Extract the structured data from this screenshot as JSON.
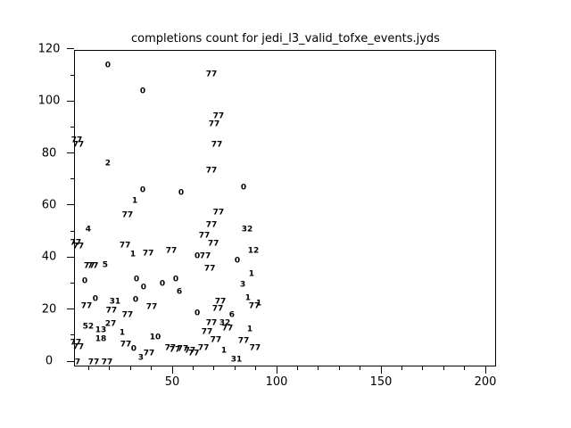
{
  "title": "completions count for jedi_l3_valid_tofxe_events.jyds",
  "chart_data": {
    "type": "scatter",
    "title": "completions count for jedi_l3_valid_tofxe_events.jyds",
    "xlabel": "",
    "ylabel": "",
    "xlim": [
      3,
      205
    ],
    "ylim": [
      -2,
      120
    ],
    "x_ticks": [
      50,
      100,
      150,
      200
    ],
    "y_ticks": [
      0,
      20,
      40,
      60,
      80,
      100,
      120
    ],
    "x_minor_step": 10,
    "y_minor_step": 10,
    "grid": "off",
    "legend": "none",
    "marker_style": "numeric-text-labels",
    "points": [
      {
        "label": "0",
        "x": 19.2,
        "y": 113.5
      },
      {
        "label": "77",
        "x": 68.8,
        "y": 110.1
      },
      {
        "label": "0",
        "x": 35.9,
        "y": 103.5
      },
      {
        "label": "77",
        "x": 72.2,
        "y": 93.9
      },
      {
        "label": "77",
        "x": 70.1,
        "y": 90.9
      },
      {
        "label": "77",
        "x": 4.3,
        "y": 84.7
      },
      {
        "label": "77",
        "x": 5.1,
        "y": 83.0
      },
      {
        "label": "77",
        "x": 71.4,
        "y": 83.0
      },
      {
        "label": "2",
        "x": 19.2,
        "y": 75.8
      },
      {
        "label": "77",
        "x": 68.8,
        "y": 73.0
      },
      {
        "label": "0",
        "x": 35.9,
        "y": 65.5
      },
      {
        "label": "0",
        "x": 54.3,
        "y": 64.5
      },
      {
        "label": "0",
        "x": 84.2,
        "y": 66.5
      },
      {
        "label": "1",
        "x": 32.1,
        "y": 61.4
      },
      {
        "label": "77",
        "x": 28.6,
        "y": 55.9
      },
      {
        "label": "77",
        "x": 72.2,
        "y": 56.9
      },
      {
        "label": "77",
        "x": 68.8,
        "y": 52.1
      },
      {
        "label": "4",
        "x": 9.8,
        "y": 50.4
      },
      {
        "label": "32",
        "x": 85.9,
        "y": 50.4
      },
      {
        "label": "77",
        "x": 65.4,
        "y": 48.0
      },
      {
        "label": "77",
        "x": 3.8,
        "y": 45.3
      },
      {
        "label": "77",
        "x": 5.1,
        "y": 43.9
      },
      {
        "label": "77",
        "x": 27.4,
        "y": 44.2
      },
      {
        "label": "77",
        "x": 69.7,
        "y": 44.9
      },
      {
        "label": "12",
        "x": 88.9,
        "y": 42.2
      },
      {
        "label": "77",
        "x": 49.6,
        "y": 42.2
      },
      {
        "label": "1",
        "x": 31.2,
        "y": 40.8
      },
      {
        "label": "77",
        "x": 38.5,
        "y": 41.1
      },
      {
        "label": "0",
        "x": 62.0,
        "y": 40.1
      },
      {
        "label": "77",
        "x": 65.8,
        "y": 40.1
      },
      {
        "label": "0",
        "x": 81.2,
        "y": 38.4
      },
      {
        "label": "77",
        "x": 10.3,
        "y": 36.3
      },
      {
        "label": "77",
        "x": 12.0,
        "y": 36.3
      },
      {
        "label": "5",
        "x": 17.9,
        "y": 36.7
      },
      {
        "label": "77",
        "x": 68.0,
        "y": 35.3
      },
      {
        "label": "1",
        "x": 88.0,
        "y": 33.3
      },
      {
        "label": "0",
        "x": 8.1,
        "y": 30.5
      },
      {
        "label": "0",
        "x": 32.9,
        "y": 31.2
      },
      {
        "label": "0",
        "x": 51.7,
        "y": 31.2
      },
      {
        "label": "0",
        "x": 36.3,
        "y": 28.1
      },
      {
        "label": "0",
        "x": 45.3,
        "y": 29.5
      },
      {
        "label": "3",
        "x": 83.8,
        "y": 29.1
      },
      {
        "label": "6",
        "x": 53.4,
        "y": 26.4
      },
      {
        "label": "0",
        "x": 13.2,
        "y": 23.7
      },
      {
        "label": "31",
        "x": 22.6,
        "y": 22.6
      },
      {
        "label": "0",
        "x": 32.5,
        "y": 23.3
      },
      {
        "label": "1",
        "x": 86.3,
        "y": 24.0
      },
      {
        "label": "77",
        "x": 73.1,
        "y": 22.6
      },
      {
        "label": "77",
        "x": 9.0,
        "y": 20.9
      },
      {
        "label": "77",
        "x": 40.2,
        "y": 20.6
      },
      {
        "label": "77",
        "x": 89.3,
        "y": 20.9
      },
      {
        "label": "1",
        "x": 91.5,
        "y": 21.9
      },
      {
        "label": "77",
        "x": 71.8,
        "y": 19.9
      },
      {
        "label": "77",
        "x": 20.9,
        "y": 19.2
      },
      {
        "label": "0",
        "x": 62.0,
        "y": 18.2
      },
      {
        "label": "6",
        "x": 78.6,
        "y": 17.5
      },
      {
        "label": "77",
        "x": 28.6,
        "y": 17.5
      },
      {
        "label": "77",
        "x": 68.8,
        "y": 14.4
      },
      {
        "label": "32",
        "x": 75.2,
        "y": 14.4
      },
      {
        "label": "27",
        "x": 20.5,
        "y": 14.1
      },
      {
        "label": "52",
        "x": 9.8,
        "y": 13.0
      },
      {
        "label": "77",
        "x": 76.5,
        "y": 12.3
      },
      {
        "label": "1",
        "x": 87.2,
        "y": 12.0
      },
      {
        "label": "13",
        "x": 15.8,
        "y": 11.7
      },
      {
        "label": "77",
        "x": 66.7,
        "y": 11.0
      },
      {
        "label": "1",
        "x": 26.1,
        "y": 10.6
      },
      {
        "label": "10",
        "x": 41.9,
        "y": 8.9
      },
      {
        "label": "18",
        "x": 15.8,
        "y": 8.2
      },
      {
        "label": "77",
        "x": 70.9,
        "y": 7.9
      },
      {
        "label": "77",
        "x": 84.2,
        "y": 7.5
      },
      {
        "label": "77",
        "x": 3.8,
        "y": 6.9
      },
      {
        "label": "77",
        "x": 5.1,
        "y": 5.1
      },
      {
        "label": "77",
        "x": 27.8,
        "y": 6.2
      },
      {
        "label": "77",
        "x": 89.7,
        "y": 4.8
      },
      {
        "label": "0",
        "x": 31.6,
        "y": 4.5
      },
      {
        "label": "77",
        "x": 38.9,
        "y": 2.7
      },
      {
        "label": "1",
        "x": 74.8,
        "y": 3.8
      },
      {
        "label": "3",
        "x": 35.0,
        "y": 1.0
      },
      {
        "label": "31",
        "x": 80.8,
        "y": 0.3
      },
      {
        "label": "7",
        "x": 4.7,
        "y": -0.7
      },
      {
        "label": "77",
        "x": 12.4,
        "y": -0.7
      },
      {
        "label": "77",
        "x": 18.8,
        "y": -0.7
      },
      {
        "label": "77",
        "x": 49.1,
        "y": 4.8
      },
      {
        "label": "77",
        "x": 51.3,
        "y": 4.1
      },
      {
        "label": "77",
        "x": 55.1,
        "y": 4.5
      },
      {
        "label": "77",
        "x": 58.5,
        "y": 3.8
      },
      {
        "label": "77",
        "x": 60.3,
        "y": 2.7
      },
      {
        "label": "77",
        "x": 65.0,
        "y": 4.8
      }
    ]
  }
}
